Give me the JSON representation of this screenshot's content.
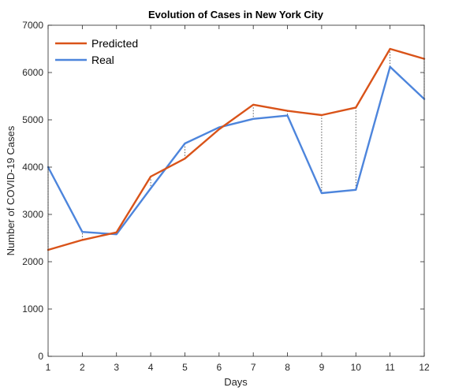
{
  "chart_data": {
    "type": "line",
    "title": "Evolution of Cases in New York City",
    "xlabel": "Days",
    "ylabel": "Number of COVID-19 Cases",
    "x": [
      1,
      2,
      3,
      4,
      5,
      6,
      7,
      8,
      9,
      10,
      11,
      12
    ],
    "xlim": [
      1,
      12
    ],
    "ylim": [
      0,
      7000
    ],
    "xticks": [
      1,
      2,
      3,
      4,
      5,
      6,
      7,
      8,
      9,
      10,
      11,
      12
    ],
    "yticks": [
      0,
      1000,
      2000,
      3000,
      4000,
      5000,
      6000,
      7000
    ],
    "grid": false,
    "legend_position": "top-left",
    "series": [
      {
        "name": "Predicted",
        "color": "#d95319",
        "values": [
          2250,
          2460,
          2620,
          3800,
          4180,
          4800,
          5320,
          5190,
          5100,
          5260,
          6500,
          6290
        ]
      },
      {
        "name": "Real",
        "color": "#4d85dc",
        "values": [
          4000,
          2630,
          2580,
          3550,
          4500,
          4840,
          5020,
          5090,
          3450,
          3520,
          6120,
          5440
        ]
      }
    ],
    "annotations": "dotted vertical lines connect Predicted and Real values at each day"
  }
}
